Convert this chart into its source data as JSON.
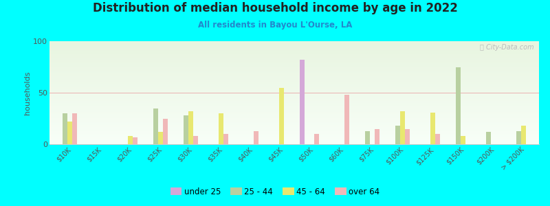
{
  "title": "Distribution of median household income by age in 2022",
  "subtitle": "All residents in Bayou L'Ourse, LA",
  "ylabel": "households",
  "background_color": "#00FFFF",
  "categories": [
    "$10K",
    "$15K",
    "$20K",
    "$25K",
    "$30K",
    "$35K",
    "$40K",
    "$45K",
    "$50K",
    "$60K",
    "$75K",
    "$100K",
    "$125K",
    "$150K",
    "$200K",
    "> $200K"
  ],
  "ylim": [
    0,
    100
  ],
  "yticks": [
    0,
    50,
    100
  ],
  "series": {
    "under 25": {
      "color": "#d4a8d8",
      "values": [
        0,
        0,
        0,
        0,
        0,
        0,
        0,
        0,
        82,
        0,
        0,
        0,
        0,
        0,
        0,
        0
      ]
    },
    "25 - 44": {
      "color": "#b8d0a0",
      "values": [
        30,
        0,
        0,
        35,
        28,
        0,
        0,
        0,
        0,
        0,
        13,
        18,
        0,
        75,
        12,
        13
      ]
    },
    "45 - 64": {
      "color": "#e8e870",
      "values": [
        22,
        0,
        8,
        12,
        32,
        30,
        0,
        55,
        0,
        0,
        0,
        32,
        31,
        8,
        0,
        18
      ]
    },
    "over 64": {
      "color": "#f0b8b8",
      "values": [
        30,
        0,
        7,
        25,
        8,
        10,
        13,
        0,
        10,
        48,
        15,
        15,
        10,
        0,
        0,
        0
      ]
    }
  },
  "legend_order": [
    "under 25",
    "25 - 44",
    "45 - 64",
    "over 64"
  ],
  "watermark": "City-Data.com"
}
